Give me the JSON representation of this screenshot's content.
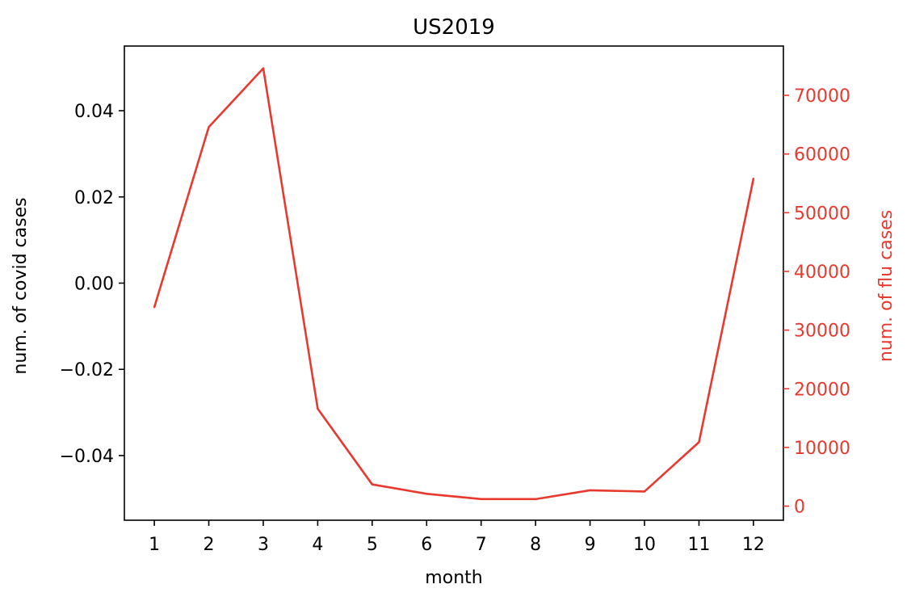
{
  "chart_data": {
    "type": "line",
    "title": "US2019",
    "xlabel": "month",
    "ylabel_left": "num. of covid cases",
    "ylabel_right": "num. of flu cases",
    "x": [
      1,
      2,
      3,
      4,
      5,
      6,
      7,
      8,
      9,
      10,
      11,
      12
    ],
    "x_ticks": [
      "1",
      "2",
      "3",
      "4",
      "5",
      "6",
      "7",
      "8",
      "9",
      "10",
      "11",
      "12"
    ],
    "xlim": [
      0.45,
      12.55
    ],
    "left_axis": {
      "ylim": [
        -0.055,
        0.055
      ],
      "ticks": [
        0.04,
        0.02,
        0.0,
        -0.02,
        -0.04
      ],
      "tick_labels": [
        "0.04",
        "0.02",
        "0.00",
        "−0.02",
        "−0.04"
      ]
    },
    "right_axis": {
      "ylim": [
        -2400,
        78400
      ],
      "ticks": [
        0,
        10000,
        20000,
        30000,
        40000,
        50000,
        60000,
        70000
      ],
      "tick_labels": [
        "0",
        "10000",
        "20000",
        "30000",
        "40000",
        "50000",
        "60000",
        "70000"
      ]
    },
    "series": [
      {
        "axis": "right",
        "values": [
          33900,
          64600,
          74600,
          16600,
          3700,
          2100,
          1200,
          1200,
          2700,
          2500,
          10900,
          55800
        ]
      }
    ],
    "colors": {
      "line": "#e8392f",
      "right_axis": "#e8392f",
      "axes": "#000000"
    },
    "grid": false
  }
}
